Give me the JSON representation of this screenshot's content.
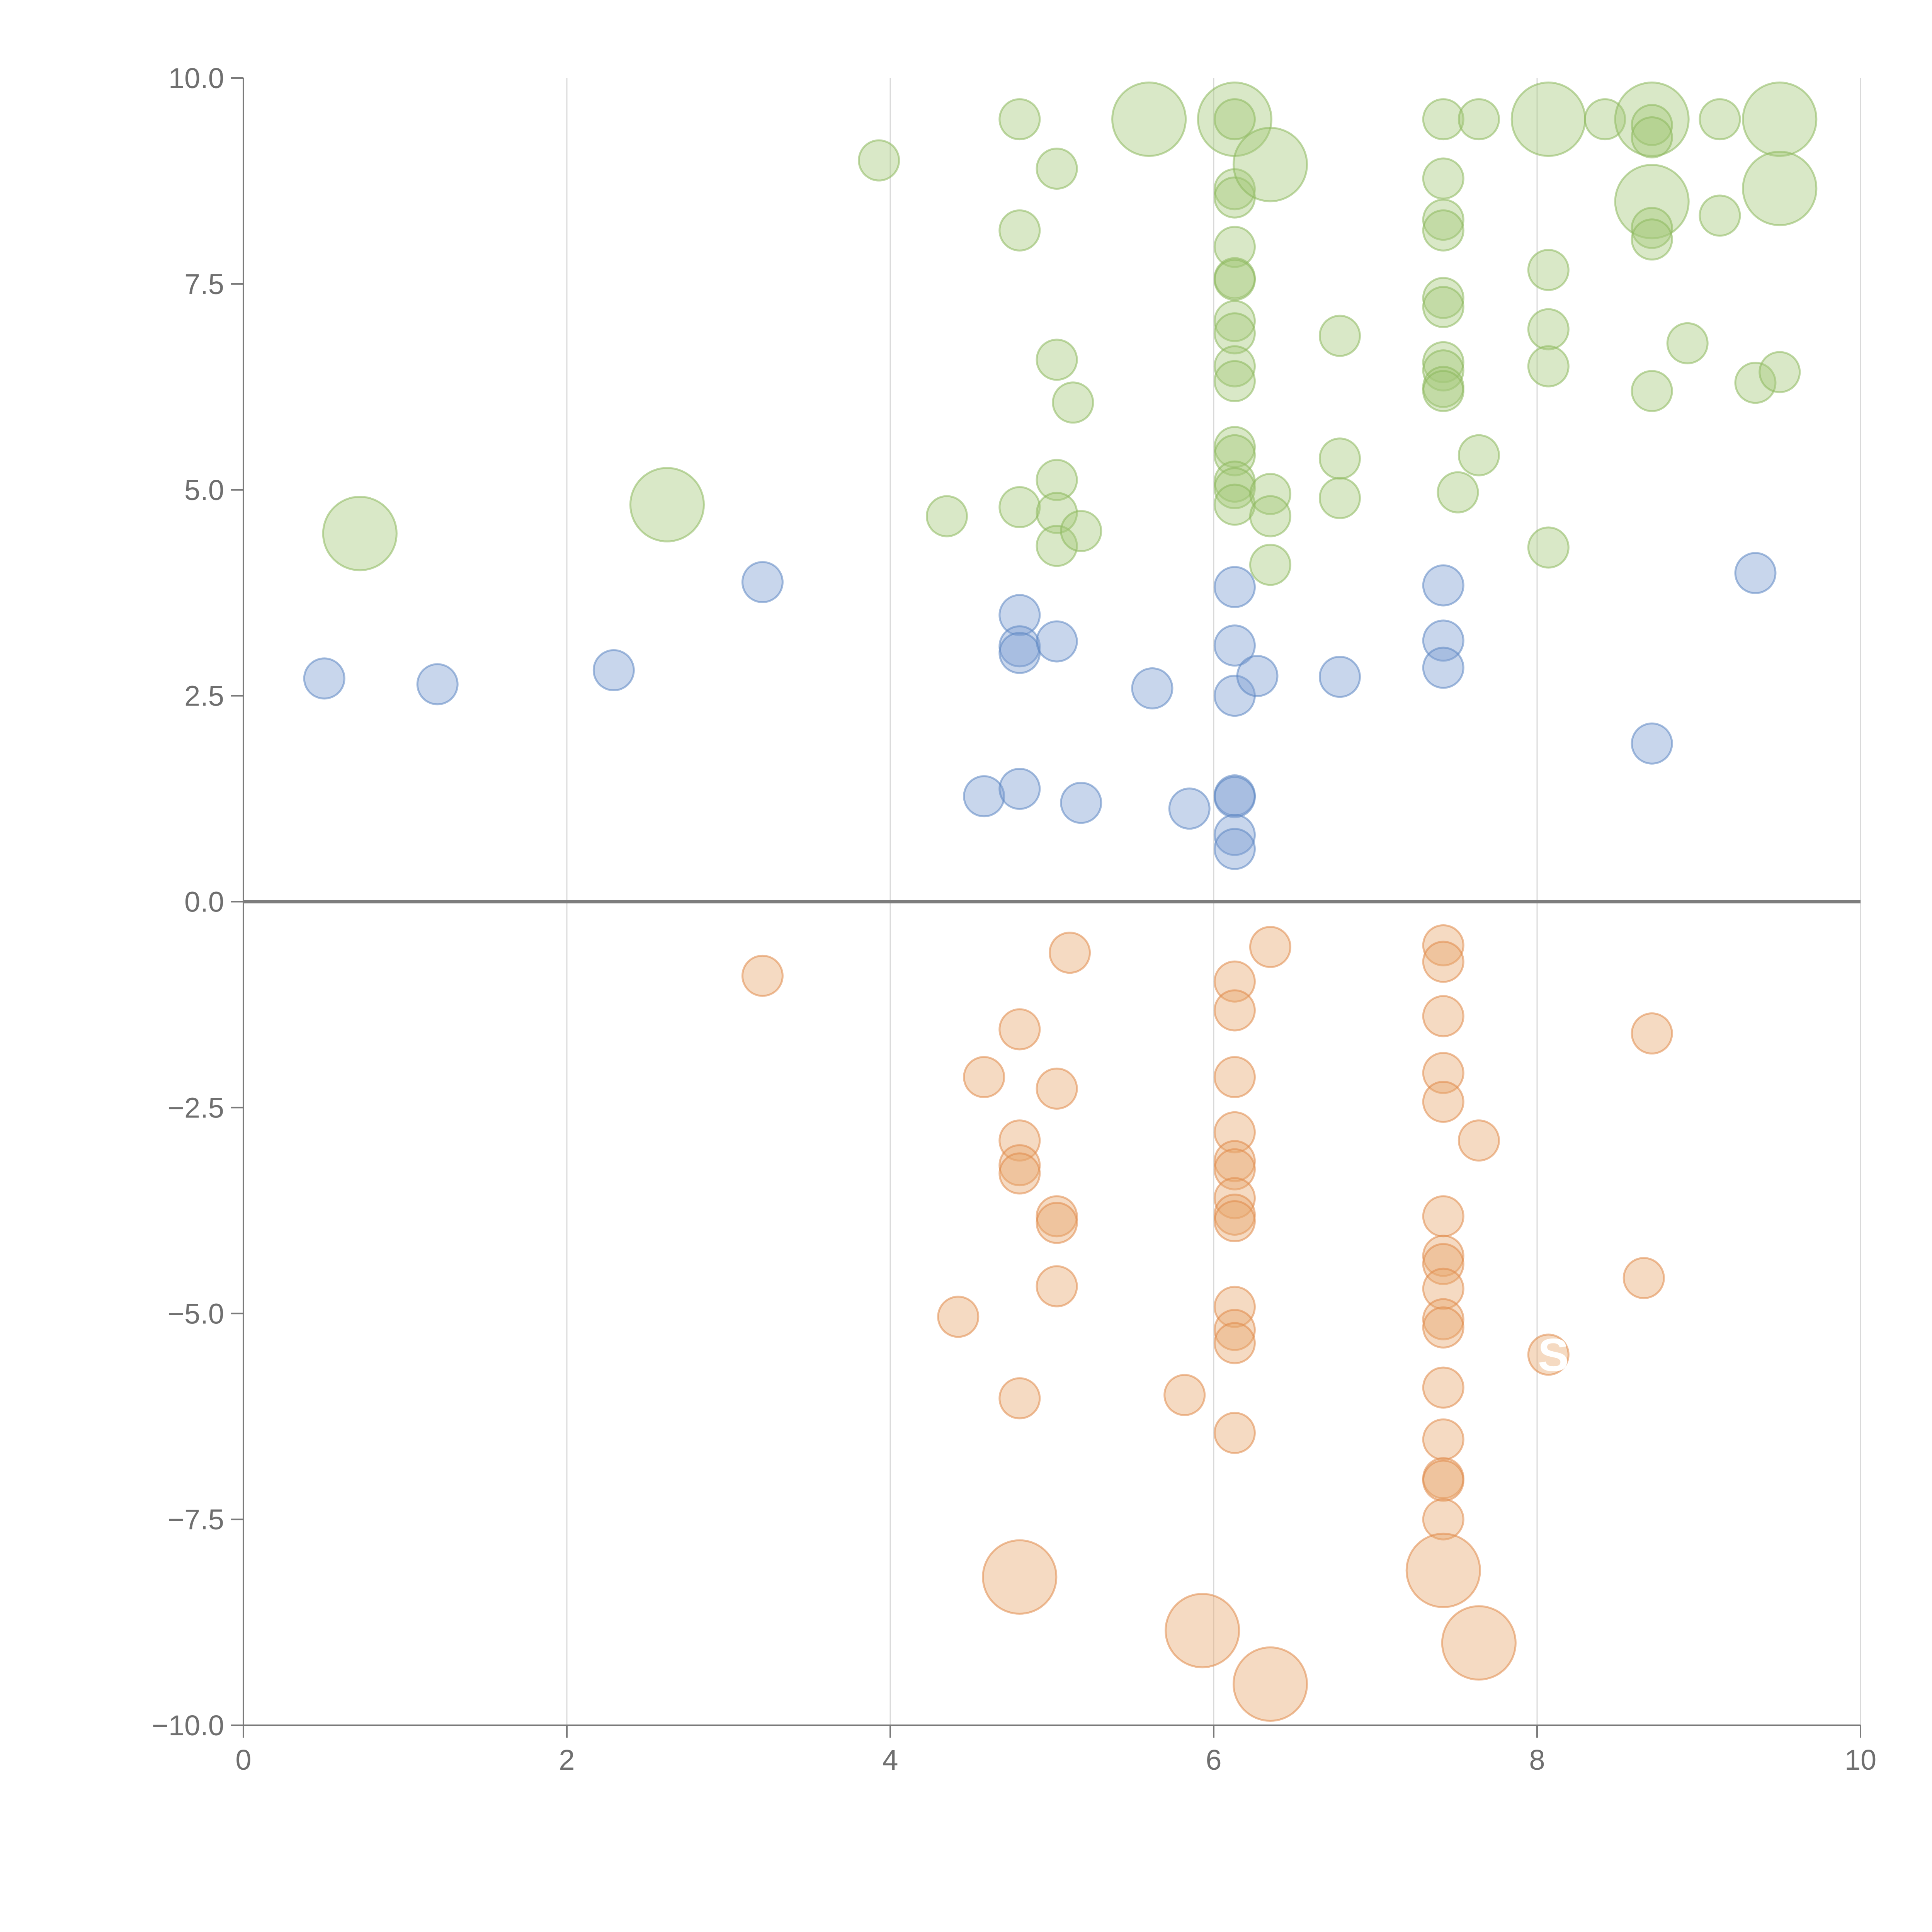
{
  "chart_data": {
    "type": "scatter",
    "subtype": "bubble",
    "title": "",
    "xlabel": "",
    "ylabel": "",
    "xlim": [
      0,
      10
    ],
    "ylim": [
      -10,
      10
    ],
    "x_ticks": [
      0,
      2,
      4,
      6,
      8,
      10
    ],
    "x_tick_labels": [
      "0",
      "2",
      "4",
      "6",
      "8",
      "10"
    ],
    "y_ticks": [
      -10,
      -7.5,
      -5,
      -2.5,
      0,
      2.5,
      5,
      7.5,
      10
    ],
    "y_tick_labels": [
      "−10.0",
      "−7.5",
      "−5.0",
      "−2.5",
      "0.0",
      "2.5",
      "5.0",
      "7.5",
      "10.0"
    ],
    "vertical_grid": true,
    "zero_line": true,
    "series": [
      {
        "name": "green",
        "color": "#a5c879",
        "stroke": "#8db85c",
        "points": [
          [
            0.72,
            4.47,
            2.4
          ],
          [
            2.62,
            4.82,
            2.4
          ],
          [
            3.93,
            9.0,
            1.0
          ],
          [
            4.35,
            4.68,
            1.0
          ],
          [
            4.8,
            9.5,
            1.0
          ],
          [
            4.8,
            8.15,
            1.0
          ],
          [
            4.8,
            4.79,
            1.0
          ],
          [
            5.03,
            8.9,
            1.0
          ],
          [
            5.03,
            6.58,
            1.0
          ],
          [
            5.03,
            5.12,
            1.0
          ],
          [
            5.03,
            4.72,
            1.0
          ],
          [
            5.03,
            4.32,
            1.0
          ],
          [
            5.13,
            6.06,
            1.0
          ],
          [
            5.18,
            4.5,
            1.0
          ],
          [
            5.6,
            9.5,
            2.4
          ],
          [
            6.13,
            9.5,
            2.4
          ],
          [
            6.13,
            9.5,
            1.0
          ],
          [
            6.13,
            8.65,
            1.0
          ],
          [
            6.13,
            8.55,
            1.0
          ],
          [
            6.13,
            7.95,
            1.0
          ],
          [
            6.13,
            7.57,
            1.0
          ],
          [
            6.13,
            7.55,
            1.0
          ],
          [
            6.13,
            7.05,
            1.0
          ],
          [
            6.13,
            6.9,
            1.0
          ],
          [
            6.13,
            6.5,
            1.0
          ],
          [
            6.13,
            6.32,
            1.0
          ],
          [
            6.13,
            5.52,
            1.0
          ],
          [
            6.13,
            5.42,
            1.0
          ],
          [
            6.13,
            5.1,
            1.0
          ],
          [
            6.13,
            5.02,
            1.0
          ],
          [
            6.13,
            4.82,
            1.0
          ],
          [
            6.35,
            8.95,
            2.4
          ],
          [
            6.35,
            4.95,
            1.0
          ],
          [
            6.35,
            4.68,
            1.0
          ],
          [
            6.35,
            4.09,
            1.0
          ],
          [
            6.78,
            6.87,
            1.0
          ],
          [
            6.78,
            5.38,
            1.0
          ],
          [
            6.78,
            4.9,
            1.0
          ],
          [
            7.42,
            9.5,
            1.0
          ],
          [
            7.42,
            8.78,
            1.0
          ],
          [
            7.42,
            8.28,
            1.0
          ],
          [
            7.42,
            8.15,
            1.0
          ],
          [
            7.42,
            7.33,
            1.0
          ],
          [
            7.42,
            7.22,
            1.0
          ],
          [
            7.42,
            6.55,
            1.0
          ],
          [
            7.42,
            6.45,
            1.0
          ],
          [
            7.42,
            6.25,
            1.0
          ],
          [
            7.42,
            6.2,
            1.0
          ],
          [
            7.51,
            4.97,
            1.0
          ],
          [
            7.64,
            9.5,
            1.0
          ],
          [
            7.64,
            5.42,
            1.0
          ],
          [
            8.07,
            9.5,
            2.4
          ],
          [
            8.07,
            7.67,
            1.0
          ],
          [
            8.07,
            6.95,
            1.0
          ],
          [
            8.07,
            6.5,
            1.0
          ],
          [
            8.07,
            4.3,
            1.0
          ],
          [
            8.42,
            9.5,
            1.0
          ],
          [
            8.71,
            9.5,
            2.4
          ],
          [
            8.71,
            9.43,
            1.0
          ],
          [
            8.71,
            9.28,
            1.0
          ],
          [
            8.71,
            8.5,
            2.4
          ],
          [
            8.71,
            8.18,
            1.0
          ],
          [
            8.71,
            8.04,
            1.0
          ],
          [
            8.71,
            6.2,
            1.0
          ],
          [
            8.93,
            6.78,
            1.0
          ],
          [
            9.13,
            9.5,
            1.0
          ],
          [
            9.13,
            8.33,
            1.0
          ],
          [
            9.35,
            6.3,
            1.0
          ],
          [
            9.5,
            9.5,
            2.4
          ],
          [
            9.5,
            8.66,
            2.4
          ],
          [
            9.5,
            6.43,
            1.0
          ]
        ]
      },
      {
        "name": "blue",
        "color": "#7c9ed1",
        "stroke": "#5d86c2",
        "points": [
          [
            0.5,
            2.71,
            1.0
          ],
          [
            1.2,
            2.64,
            1.0
          ],
          [
            2.29,
            2.81,
            1.0
          ],
          [
            3.21,
            3.88,
            1.0
          ],
          [
            4.58,
            1.28,
            1.0
          ],
          [
            4.8,
            3.48,
            1.0
          ],
          [
            4.8,
            3.1,
            1.0
          ],
          [
            4.8,
            3.02,
            1.0
          ],
          [
            4.8,
            1.37,
            1.0
          ],
          [
            5.03,
            3.16,
            1.0
          ],
          [
            5.18,
            1.2,
            1.0
          ],
          [
            5.62,
            2.59,
            1.0
          ],
          [
            5.85,
            1.13,
            1.0
          ],
          [
            6.13,
            3.82,
            1.0
          ],
          [
            6.13,
            3.11,
            1.0
          ],
          [
            6.13,
            2.5,
            1.0
          ],
          [
            6.13,
            1.29,
            1.0
          ],
          [
            6.13,
            1.27,
            1.0
          ],
          [
            6.13,
            0.81,
            1.0
          ],
          [
            6.13,
            0.64,
            1.0
          ],
          [
            6.27,
            2.74,
            1.0
          ],
          [
            6.78,
            2.73,
            1.0
          ],
          [
            7.42,
            3.84,
            1.0
          ],
          [
            7.42,
            3.17,
            1.0
          ],
          [
            7.42,
            2.84,
            1.0
          ],
          [
            8.71,
            1.92,
            1.0
          ],
          [
            9.35,
            3.99,
            1.0
          ]
        ]
      },
      {
        "name": "orange",
        "color": "#e8a66e",
        "stroke": "#e08a4a",
        "points": [
          [
            3.21,
            -0.9,
            1.0
          ],
          [
            4.42,
            -5.04,
            1.0
          ],
          [
            4.58,
            -2.13,
            1.0
          ],
          [
            4.8,
            -1.55,
            1.0
          ],
          [
            4.8,
            -2.9,
            1.0
          ],
          [
            4.8,
            -3.2,
            1.0
          ],
          [
            4.8,
            -3.3,
            1.0
          ],
          [
            4.8,
            -6.03,
            1.0
          ],
          [
            4.8,
            -8.2,
            2.4
          ],
          [
            5.03,
            -2.27,
            1.0
          ],
          [
            5.03,
            -3.82,
            1.0
          ],
          [
            5.03,
            -3.9,
            1.0
          ],
          [
            5.03,
            -4.67,
            1.0
          ],
          [
            5.11,
            -0.62,
            1.0
          ],
          [
            5.82,
            -5.99,
            1.0
          ],
          [
            5.93,
            -8.85,
            2.4
          ],
          [
            6.13,
            -0.97,
            1.0
          ],
          [
            6.13,
            -1.32,
            1.0
          ],
          [
            6.13,
            -2.13,
            1.0
          ],
          [
            6.13,
            -2.8,
            1.0
          ],
          [
            6.13,
            -3.15,
            1.0
          ],
          [
            6.13,
            -3.25,
            1.0
          ],
          [
            6.13,
            -3.6,
            1.0
          ],
          [
            6.13,
            -3.8,
            1.0
          ],
          [
            6.13,
            -3.88,
            1.0
          ],
          [
            6.13,
            -4.92,
            1.0
          ],
          [
            6.13,
            -5.2,
            1.0
          ],
          [
            6.13,
            -5.36,
            1.0
          ],
          [
            6.13,
            -6.45,
            1.0
          ],
          [
            6.35,
            -0.55,
            1.0
          ],
          [
            6.35,
            -9.5,
            2.4
          ],
          [
            7.42,
            -0.53,
            1.0
          ],
          [
            7.42,
            -0.73,
            1.0
          ],
          [
            7.42,
            -1.39,
            1.0
          ],
          [
            7.42,
            -2.08,
            1.0
          ],
          [
            7.42,
            -2.43,
            1.0
          ],
          [
            7.42,
            -3.82,
            1.0
          ],
          [
            7.42,
            -4.3,
            1.0
          ],
          [
            7.42,
            -4.4,
            1.0
          ],
          [
            7.42,
            -4.7,
            1.0
          ],
          [
            7.42,
            -5.07,
            1.0
          ],
          [
            7.42,
            -5.17,
            1.0
          ],
          [
            7.42,
            -5.9,
            1.0
          ],
          [
            7.42,
            -6.53,
            1.0
          ],
          [
            7.42,
            -7.0,
            1.0
          ],
          [
            7.42,
            -7.03,
            1.0
          ],
          [
            7.42,
            -7.5,
            1.0
          ],
          [
            7.42,
            -8.12,
            2.4
          ],
          [
            7.64,
            -2.9,
            1.0
          ],
          [
            7.64,
            -9.0,
            2.4
          ],
          [
            8.07,
            -5.5,
            1.0
          ],
          [
            8.66,
            -4.57,
            1.0
          ],
          [
            8.71,
            -1.6,
            1.0
          ]
        ]
      }
    ],
    "annotations": [
      {
        "text": "S",
        "x": 8.1,
        "y": -5.5,
        "color": "#ffffff"
      }
    ]
  }
}
